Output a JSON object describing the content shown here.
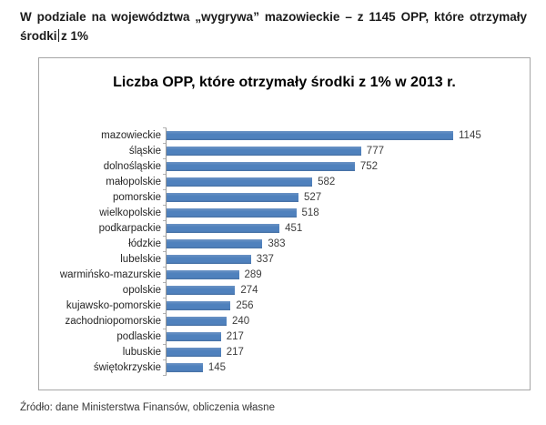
{
  "intro": {
    "line1": "W podziale na województwa „wygrywa” mazowieckie – z 1145 OPP, które otrzymały",
    "line2_part1": "środki",
    "line2_part2": "z 1%"
  },
  "chart_data": {
    "type": "bar",
    "orientation": "horizontal",
    "title": "Liczba OPP, które otrzymały środki z 1% w 2013 r.",
    "categories": [
      "mazowieckie",
      "śląskie",
      "dolnośląskie",
      "małopolskie",
      "pomorskie",
      "wielkopolskie",
      "podkarpackie",
      "łódzkie",
      "lubelskie",
      "warmińsko-mazurskie",
      "opolskie",
      "kujawsko-pomorskie",
      "zachodniopomorskie",
      "podlaskie",
      "lubuskie",
      "świętokrzyskie"
    ],
    "values": [
      1145,
      777,
      752,
      582,
      527,
      518,
      451,
      383,
      337,
      289,
      274,
      256,
      240,
      217,
      217,
      145
    ],
    "xlim": [
      0,
      1145
    ],
    "bar_color": "#4F81BD",
    "data_labels": true,
    "legend_position": "none",
    "grid": false,
    "sort": "descending"
  },
  "source": "Źródło: dane Ministerstwa Finansów, obliczenia własne"
}
